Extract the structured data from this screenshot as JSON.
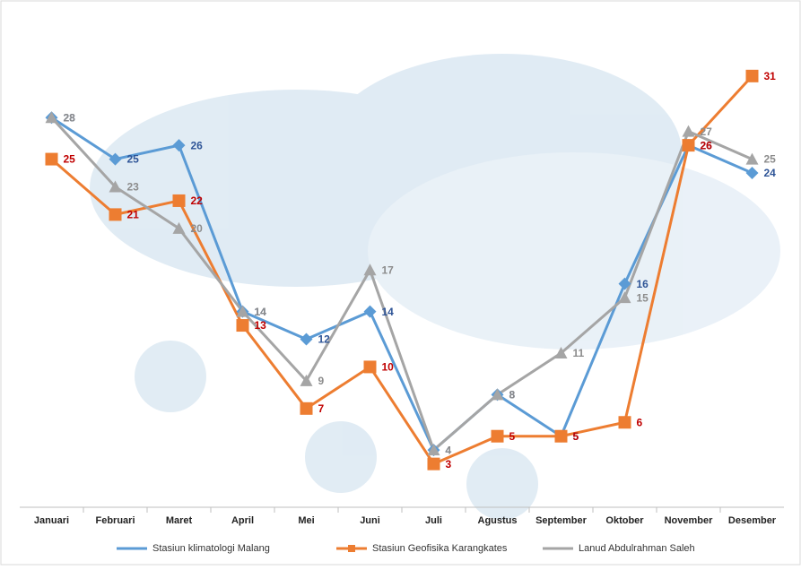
{
  "chart_data": {
    "type": "line",
    "categories": [
      "Januari",
      "Februari",
      "Maret",
      "April",
      "Mei",
      "Juni",
      "Juli",
      "Agustus",
      "September",
      "Oktober",
      "November",
      "Desember"
    ],
    "series": [
      {
        "name": "Stasiun klimatologi Malang",
        "color": "#5b9bd5",
        "label_color": "#2f5597",
        "marker": "diamond",
        "values": [
          28,
          25,
          26,
          14,
          12,
          14,
          4,
          8,
          5,
          16,
          26,
          24
        ]
      },
      {
        "name": "Stasiun Geofisika Karangkates",
        "color": "#ed7d31",
        "label_color": "#c00000",
        "marker": "square",
        "values": [
          25,
          21,
          22,
          13,
          7,
          10,
          3,
          5,
          5,
          6,
          26,
          31
        ]
      },
      {
        "name": "Lanud Abdulrahman Saleh",
        "color": "#a5a5a5",
        "label_color": "#8c8c8c",
        "marker": "triangle",
        "values": [
          28,
          23,
          20,
          14,
          9,
          17,
          4,
          8,
          11,
          15,
          27,
          25
        ]
      }
    ],
    "ylim": [
      0,
      35
    ],
    "legend": "bottom"
  }
}
